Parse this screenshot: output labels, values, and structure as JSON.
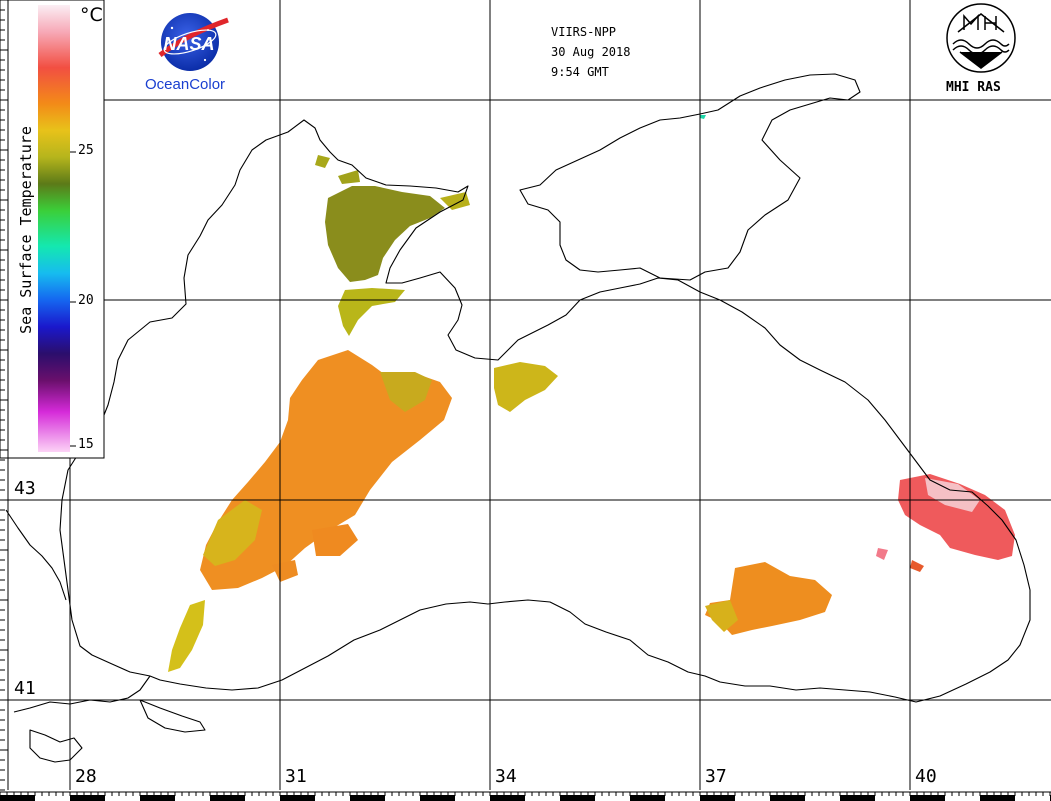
{
  "header": {
    "satellite": "VIIRS-NPP",
    "date": "30 Aug 2018",
    "time": "9:54 GMT"
  },
  "logos": {
    "nasa_logo_text": "NASA",
    "nasa_caption": "OceanColor",
    "mhi_caption": "MHI RAS"
  },
  "colorbar": {
    "title": "Sea Surface Temperature",
    "unit": "°C",
    "ticks": [
      "25",
      "20",
      "15"
    ],
    "range": [
      15,
      30
    ]
  },
  "axes": {
    "longitude_labels": [
      "28",
      "31",
      "34",
      "37",
      "40"
    ],
    "latitude_labels": [
      "43",
      "41"
    ]
  },
  "colors": {
    "coastline": "#000000",
    "grid": "#000000",
    "nasa_blue": "#1a3fd0",
    "nasa_red": "#e0262b"
  }
}
